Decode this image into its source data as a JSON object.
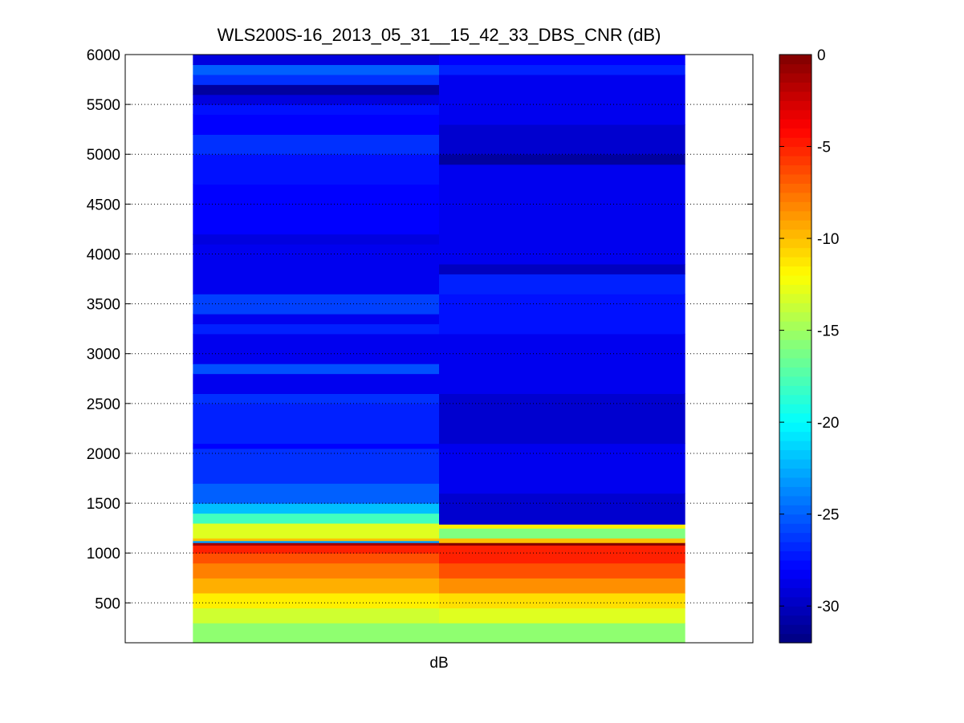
{
  "chart_data": {
    "type": "heatmap",
    "title": "WLS200S-16_2013_05_31__15_42_33_DBS_CNR (dB)",
    "xlabel": "dB",
    "ylabel": "",
    "ylim": [
      100,
      6000
    ],
    "yticks": [
      500,
      1000,
      1500,
      2000,
      2500,
      3000,
      3500,
      4000,
      4500,
      5000,
      5500,
      6000
    ],
    "grid": "horizontal dotted",
    "colorbar": {
      "colormap": "jet",
      "clim": [
        -32,
        0
      ],
      "ticks": [
        0,
        -5,
        -10,
        -15,
        -20,
        -25,
        -30
      ]
    },
    "columns": [
      {
        "x_range": [
          0.5,
          1.5
        ],
        "bands": [
          {
            "y_from": 100,
            "y_to": 300,
            "value": -15.5
          },
          {
            "y_from": 300,
            "y_to": 450,
            "value": -13.5
          },
          {
            "y_from": 450,
            "y_to": 600,
            "value": -11.5
          },
          {
            "y_from": 600,
            "y_to": 750,
            "value": -9.5
          },
          {
            "y_from": 750,
            "y_to": 900,
            "value": -8
          },
          {
            "y_from": 900,
            "y_to": 1000,
            "value": -6.5
          },
          {
            "y_from": 1000,
            "y_to": 1080,
            "value": -5
          },
          {
            "y_from": 1080,
            "y_to": 1105,
            "value": -1
          },
          {
            "y_from": 1105,
            "y_to": 1125,
            "value": -23
          },
          {
            "y_from": 1125,
            "y_to": 1150,
            "value": -10
          },
          {
            "y_from": 1150,
            "y_to": 1300,
            "value": -13
          },
          {
            "y_from": 1300,
            "y_to": 1400,
            "value": -18
          },
          {
            "y_from": 1400,
            "y_to": 1500,
            "value": -22
          },
          {
            "y_from": 1500,
            "y_to": 1700,
            "value": -25
          },
          {
            "y_from": 1700,
            "y_to": 2050,
            "value": -26.5
          },
          {
            "y_from": 2050,
            "y_to": 2100,
            "value": -28
          },
          {
            "y_from": 2100,
            "y_to": 2500,
            "value": -27
          },
          {
            "y_from": 2500,
            "y_to": 2600,
            "value": -26.5
          },
          {
            "y_from": 2600,
            "y_to": 2800,
            "value": -28.5
          },
          {
            "y_from": 2800,
            "y_to": 2900,
            "value": -25.5
          },
          {
            "y_from": 2900,
            "y_to": 3200,
            "value": -28.5
          },
          {
            "y_from": 3200,
            "y_to": 3300,
            "value": -27
          },
          {
            "y_from": 3300,
            "y_to": 3400,
            "value": -28.5
          },
          {
            "y_from": 3400,
            "y_to": 3600,
            "value": -26
          },
          {
            "y_from": 3600,
            "y_to": 4100,
            "value": -28.5
          },
          {
            "y_from": 4100,
            "y_to": 4200,
            "value": -29
          },
          {
            "y_from": 4200,
            "y_to": 4700,
            "value": -28
          },
          {
            "y_from": 4700,
            "y_to": 5000,
            "value": -27.5
          },
          {
            "y_from": 5000,
            "y_to": 5200,
            "value": -26.5
          },
          {
            "y_from": 5200,
            "y_to": 5400,
            "value": -28
          },
          {
            "y_from": 5400,
            "y_to": 5500,
            "value": -27.5
          },
          {
            "y_from": 5500,
            "y_to": 5600,
            "value": -29
          },
          {
            "y_from": 5600,
            "y_to": 5700,
            "value": -31
          },
          {
            "y_from": 5700,
            "y_to": 5800,
            "value": -26.5
          },
          {
            "y_from": 5800,
            "y_to": 5900,
            "value": -25
          },
          {
            "y_from": 5900,
            "y_to": 6000,
            "value": -29
          }
        ]
      },
      {
        "x_range": [
          1.5,
          2.5
        ],
        "bands": [
          {
            "y_from": 100,
            "y_to": 300,
            "value": -15.5
          },
          {
            "y_from": 300,
            "y_to": 450,
            "value": -13
          },
          {
            "y_from": 450,
            "y_to": 600,
            "value": -11
          },
          {
            "y_from": 600,
            "y_to": 750,
            "value": -8.5
          },
          {
            "y_from": 750,
            "y_to": 900,
            "value": -6.5
          },
          {
            "y_from": 900,
            "y_to": 1080,
            "value": -5
          },
          {
            "y_from": 1080,
            "y_to": 1105,
            "value": 0
          },
          {
            "y_from": 1105,
            "y_to": 1150,
            "value": -10
          },
          {
            "y_from": 1150,
            "y_to": 1250,
            "value": -16
          },
          {
            "y_from": 1250,
            "y_to": 1290,
            "value": -11.5
          },
          {
            "y_from": 1290,
            "y_to": 1600,
            "value": -29.5
          },
          {
            "y_from": 1600,
            "y_to": 2100,
            "value": -28.5
          },
          {
            "y_from": 2100,
            "y_to": 2600,
            "value": -29.5
          },
          {
            "y_from": 2600,
            "y_to": 3200,
            "value": -28.5
          },
          {
            "y_from": 3200,
            "y_to": 3600,
            "value": -27.5
          },
          {
            "y_from": 3600,
            "y_to": 3800,
            "value": -27
          },
          {
            "y_from": 3800,
            "y_to": 3900,
            "value": -30
          },
          {
            "y_from": 3900,
            "y_to": 4900,
            "value": -28.5
          },
          {
            "y_from": 4900,
            "y_to": 5000,
            "value": -31
          },
          {
            "y_from": 5000,
            "y_to": 5300,
            "value": -29.5
          },
          {
            "y_from": 5300,
            "y_to": 5800,
            "value": -28.5
          },
          {
            "y_from": 5800,
            "y_to": 5900,
            "value": -27
          },
          {
            "y_from": 5900,
            "y_to": 6000,
            "value": -28
          }
        ]
      }
    ]
  }
}
